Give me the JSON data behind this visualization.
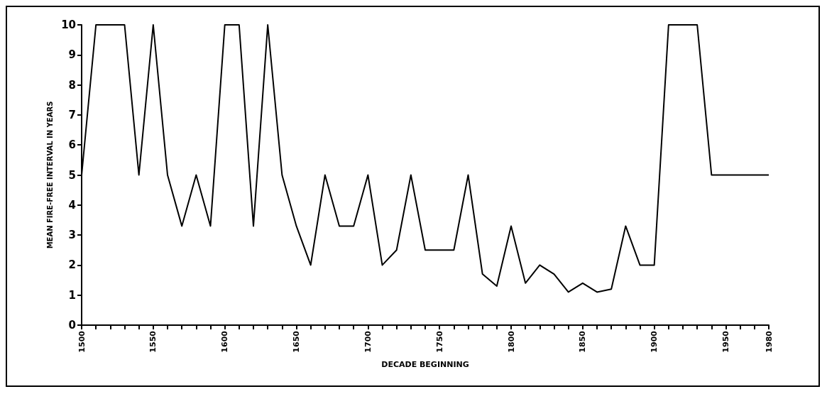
{
  "chart_data": {
    "type": "line",
    "xlabel": "DECADE BEGINNING",
    "ylabel": "MEAN FIRE-FREE INTERVAL IN YEARS",
    "x": [
      1500,
      1510,
      1520,
      1530,
      1540,
      1550,
      1560,
      1570,
      1580,
      1590,
      1600,
      1610,
      1620,
      1630,
      1640,
      1650,
      1660,
      1670,
      1680,
      1690,
      1700,
      1710,
      1720,
      1730,
      1740,
      1750,
      1760,
      1770,
      1780,
      1790,
      1800,
      1810,
      1820,
      1830,
      1840,
      1850,
      1860,
      1870,
      1880,
      1890,
      1900,
      1910,
      1920,
      1930,
      1940,
      1950,
      1960,
      1970,
      1980
    ],
    "series": [
      {
        "color": "#000000",
        "values": [
          5,
          10,
          10,
          10,
          5,
          10,
          5,
          3.3,
          5,
          3.3,
          10,
          10,
          3.3,
          10,
          5,
          3.3,
          2,
          5,
          3.3,
          3.3,
          5,
          2,
          2.5,
          5,
          2.5,
          2.5,
          2.5,
          5,
          1.7,
          1.3,
          3.3,
          1.4,
          2,
          1.7,
          1.1,
          1.4,
          1.1,
          1.2,
          3.3,
          2,
          2,
          10,
          10,
          10,
          5,
          5,
          5,
          5,
          5
        ]
      }
    ],
    "xlim": [
      1500,
      1980
    ],
    "xticks": [
      1500,
      {
        "value": 1510,
        "label": null
      },
      {
        "value": 1520,
        "label": null
      },
      {
        "value": 1530,
        "label": null
      },
      {
        "value": 1540,
        "label": null
      },
      1550,
      {
        "value": 1560,
        "label": null
      },
      {
        "value": 1570,
        "label": null
      },
      {
        "value": 1580,
        "label": null
      },
      {
        "value": 1590,
        "label": null
      },
      1600,
      {
        "value": 1610,
        "label": null
      },
      {
        "value": 1620,
        "label": null
      },
      {
        "value": 1630,
        "label": null
      },
      {
        "value": 1640,
        "label": null
      },
      1650,
      {
        "value": 1660,
        "label": null
      },
      {
        "value": 1670,
        "label": null
      },
      {
        "value": 1680,
        "label": null
      },
      {
        "value": 1690,
        "label": null
      },
      1700,
      {
        "value": 1710,
        "label": null
      },
      {
        "value": 1720,
        "label": null
      },
      {
        "value": 1730,
        "label": null
      },
      {
        "value": 1740,
        "label": null
      },
      1750,
      {
        "value": 1760,
        "label": null
      },
      {
        "value": 1770,
        "label": null
      },
      {
        "value": 1780,
        "label": null
      },
      {
        "value": 1790,
        "label": null
      },
      1800,
      {
        "value": 1810,
        "label": null
      },
      {
        "value": 1820,
        "label": null
      },
      {
        "value": 1830,
        "label": null
      },
      {
        "value": 1840,
        "label": null
      },
      1850,
      {
        "value": 1860,
        "label": null
      },
      {
        "value": 1870,
        "label": null
      },
      {
        "value": 1880,
        "label": null
      },
      {
        "value": 1890,
        "label": null
      },
      1900,
      {
        "value": 1910,
        "label": null
      },
      {
        "value": 1920,
        "label": null
      },
      {
        "value": 1930,
        "label": null
      },
      {
        "value": 1940,
        "label": null
      },
      1950,
      {
        "value": 1960,
        "label": null
      },
      {
        "value": 1970,
        "label": null
      },
      1980
    ],
    "ylim": [
      0,
      10
    ],
    "yticks": [
      0,
      1,
      2,
      3,
      4,
      5,
      6,
      7,
      8,
      9,
      10
    ],
    "grid": false,
    "marker": "none",
    "line_style": "solid"
  }
}
